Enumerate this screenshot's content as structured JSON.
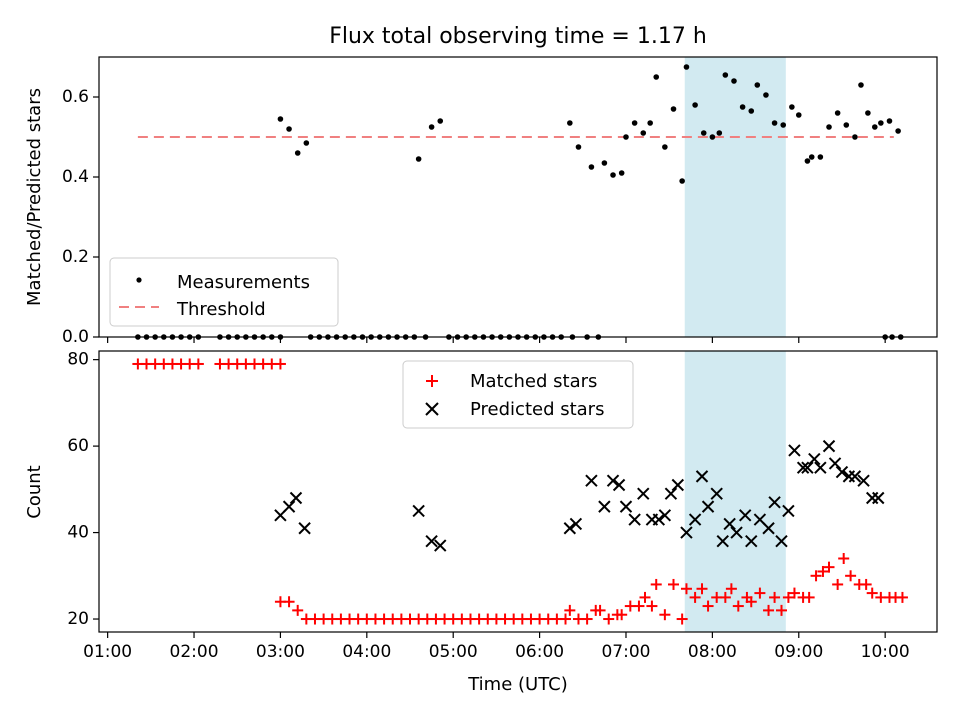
{
  "title": "Flux total observing time = 1.17 h",
  "colors": {
    "matched": "#ff0000",
    "predicted": "#000000",
    "measurement": "#000000",
    "threshold": "#f08080",
    "highlight": "#add8e6"
  },
  "chart_data": [
    {
      "type": "scatter",
      "panel": "top",
      "ylabel": "Matched/Predicted stars",
      "ylim": [
        0,
        0.7
      ],
      "yticks": [
        0.0,
        0.2,
        0.4,
        0.6
      ],
      "ytick_labels": [
        "0.0",
        "0.2",
        "0.4",
        "0.6"
      ],
      "xlim_hours": [
        0.9,
        10.6
      ],
      "highlight_span_hours": [
        7.68,
        8.85
      ],
      "legend": {
        "placement": "lower-left",
        "entries": [
          "Measurements",
          "Threshold"
        ]
      },
      "threshold": {
        "name": "Threshold",
        "value": 0.5,
        "x_range_hours": [
          1.35,
          10.1
        ]
      },
      "series": [
        {
          "name": "Measurements",
          "points": [
            [
              1.35,
              0
            ],
            [
              1.45,
              0
            ],
            [
              1.55,
              0
            ],
            [
              1.65,
              0
            ],
            [
              1.75,
              0
            ],
            [
              1.85,
              0
            ],
            [
              1.95,
              0
            ],
            [
              2.05,
              0
            ],
            [
              2.3,
              0
            ],
            [
              2.4,
              0
            ],
            [
              2.5,
              0
            ],
            [
              2.6,
              0
            ],
            [
              2.7,
              0
            ],
            [
              2.8,
              0
            ],
            [
              2.9,
              0
            ],
            [
              3.0,
              0
            ],
            [
              3.0,
              0.545
            ],
            [
              3.1,
              0.52
            ],
            [
              3.2,
              0.46
            ],
            [
              3.3,
              0.485
            ],
            [
              3.35,
              0
            ],
            [
              3.45,
              0
            ],
            [
              3.55,
              0
            ],
            [
              3.65,
              0
            ],
            [
              3.75,
              0
            ],
            [
              3.85,
              0
            ],
            [
              3.95,
              0
            ],
            [
              4.05,
              0
            ],
            [
              4.15,
              0
            ],
            [
              4.25,
              0
            ],
            [
              4.35,
              0
            ],
            [
              4.45,
              0
            ],
            [
              4.55,
              0
            ],
            [
              4.6,
              0.445
            ],
            [
              4.68,
              0
            ],
            [
              4.75,
              0.525
            ],
            [
              4.85,
              0.54
            ],
            [
              4.95,
              0
            ],
            [
              5.05,
              0
            ],
            [
              5.15,
              0
            ],
            [
              5.25,
              0
            ],
            [
              5.35,
              0
            ],
            [
              5.45,
              0
            ],
            [
              5.55,
              0
            ],
            [
              5.65,
              0
            ],
            [
              5.75,
              0
            ],
            [
              5.85,
              0
            ],
            [
              5.95,
              0
            ],
            [
              6.05,
              0
            ],
            [
              6.15,
              0
            ],
            [
              6.25,
              0
            ],
            [
              6.35,
              0.535
            ],
            [
              6.38,
              0
            ],
            [
              6.45,
              0.475
            ],
            [
              6.55,
              0
            ],
            [
              6.6,
              0.425
            ],
            [
              6.68,
              0
            ],
            [
              6.75,
              0.435
            ],
            [
              6.85,
              0.405
            ],
            [
              6.95,
              0.41
            ],
            [
              7.0,
              0.5
            ],
            [
              7.1,
              0.535
            ],
            [
              7.2,
              0.51
            ],
            [
              7.28,
              0.535
            ],
            [
              7.35,
              0.65
            ],
            [
              7.45,
              0.475
            ],
            [
              7.55,
              0.57
            ],
            [
              7.65,
              0.39
            ],
            [
              7.7,
              0.675
            ],
            [
              7.8,
              0.58
            ],
            [
              7.9,
              0.51
            ],
            [
              8.0,
              0.5
            ],
            [
              8.08,
              0.51
            ],
            [
              8.15,
              0.655
            ],
            [
              8.25,
              0.64
            ],
            [
              8.35,
              0.575
            ],
            [
              8.45,
              0.565
            ],
            [
              8.52,
              0.63
            ],
            [
              8.62,
              0.605
            ],
            [
              8.72,
              0.535
            ],
            [
              8.82,
              0.53
            ],
            [
              8.92,
              0.575
            ],
            [
              9.0,
              0.555
            ],
            [
              9.1,
              0.44
            ],
            [
              9.15,
              0.45
            ],
            [
              9.25,
              0.45
            ],
            [
              9.35,
              0.525
            ],
            [
              9.45,
              0.56
            ],
            [
              9.55,
              0.53
            ],
            [
              9.65,
              0.5
            ],
            [
              9.72,
              0.63
            ],
            [
              9.8,
              0.56
            ],
            [
              9.88,
              0.525
            ],
            [
              9.95,
              0.535
            ],
            [
              10.05,
              0.54
            ],
            [
              10.15,
              0.515
            ],
            [
              10.0,
              0
            ],
            [
              10.08,
              0
            ],
            [
              10.18,
              0
            ]
          ]
        }
      ]
    },
    {
      "type": "scatter",
      "panel": "bottom",
      "xlabel": "Time (UTC)",
      "ylabel": "Count",
      "ylim": [
        17,
        82
      ],
      "yticks": [
        20,
        40,
        60,
        80
      ],
      "ytick_labels": [
        "20",
        "40",
        "60",
        "80"
      ],
      "xlim_hours": [
        0.9,
        10.6
      ],
      "xticks_hours": [
        1,
        2,
        3,
        4,
        5,
        6,
        7,
        8,
        9,
        10
      ],
      "xtick_labels": [
        "01:00",
        "02:00",
        "03:00",
        "04:00",
        "05:00",
        "06:00",
        "07:00",
        "08:00",
        "09:00",
        "10:00"
      ],
      "highlight_span_hours": [
        7.68,
        8.85
      ],
      "legend": {
        "placement": "upper-center",
        "entries": [
          "Matched stars",
          "Predicted stars"
        ]
      },
      "series": [
        {
          "name": "Matched stars",
          "points": [
            [
              1.35,
              79
            ],
            [
              1.45,
              79
            ],
            [
              1.55,
              79
            ],
            [
              1.65,
              79
            ],
            [
              1.75,
              79
            ],
            [
              1.85,
              79
            ],
            [
              1.95,
              79
            ],
            [
              2.05,
              79
            ],
            [
              2.3,
              79
            ],
            [
              2.4,
              79
            ],
            [
              2.5,
              79
            ],
            [
              2.6,
              79
            ],
            [
              2.7,
              79
            ],
            [
              2.8,
              79
            ],
            [
              2.9,
              79
            ],
            [
              3.0,
              79
            ],
            [
              3.0,
              24
            ],
            [
              3.1,
              24
            ],
            [
              3.2,
              22
            ],
            [
              3.3,
              20
            ],
            [
              3.4,
              20
            ],
            [
              3.5,
              20
            ],
            [
              3.6,
              20
            ],
            [
              3.7,
              20
            ],
            [
              3.8,
              20
            ],
            [
              3.9,
              20
            ],
            [
              4.0,
              20
            ],
            [
              4.1,
              20
            ],
            [
              4.2,
              20
            ],
            [
              4.3,
              20
            ],
            [
              4.4,
              20
            ],
            [
              4.5,
              20
            ],
            [
              4.6,
              20
            ],
            [
              4.7,
              20
            ],
            [
              4.8,
              20
            ],
            [
              4.9,
              20
            ],
            [
              5.0,
              20
            ],
            [
              5.1,
              20
            ],
            [
              5.2,
              20
            ],
            [
              5.3,
              20
            ],
            [
              5.4,
              20
            ],
            [
              5.5,
              20
            ],
            [
              5.6,
              20
            ],
            [
              5.7,
              20
            ],
            [
              5.8,
              20
            ],
            [
              5.9,
              20
            ],
            [
              6.0,
              20
            ],
            [
              6.1,
              20
            ],
            [
              6.2,
              20
            ],
            [
              6.3,
              20
            ],
            [
              6.35,
              22
            ],
            [
              6.45,
              20
            ],
            [
              6.55,
              20
            ],
            [
              6.65,
              22
            ],
            [
              6.7,
              22
            ],
            [
              6.8,
              20
            ],
            [
              6.9,
              21
            ],
            [
              6.95,
              21
            ],
            [
              7.05,
              23
            ],
            [
              7.15,
              23
            ],
            [
              7.22,
              25
            ],
            [
              7.3,
              23
            ],
            [
              7.35,
              28
            ],
            [
              7.45,
              21
            ],
            [
              7.55,
              28
            ],
            [
              7.65,
              20
            ],
            [
              7.7,
              27
            ],
            [
              7.8,
              25
            ],
            [
              7.88,
              27
            ],
            [
              7.95,
              23
            ],
            [
              8.05,
              25
            ],
            [
              8.15,
              25
            ],
            [
              8.22,
              27
            ],
            [
              8.3,
              23
            ],
            [
              8.4,
              25
            ],
            [
              8.45,
              24
            ],
            [
              8.55,
              26
            ],
            [
              8.65,
              22
            ],
            [
              8.72,
              25
            ],
            [
              8.8,
              22
            ],
            [
              8.88,
              25
            ],
            [
              8.95,
              26
            ],
            [
              9.05,
              25
            ],
            [
              9.12,
              25
            ],
            [
              9.2,
              30
            ],
            [
              9.28,
              31
            ],
            [
              9.35,
              32
            ],
            [
              9.45,
              28
            ],
            [
              9.52,
              34
            ],
            [
              9.6,
              30
            ],
            [
              9.7,
              28
            ],
            [
              9.78,
              28
            ],
            [
              9.85,
              26
            ],
            [
              9.95,
              25
            ],
            [
              10.05,
              25
            ],
            [
              10.12,
              25
            ],
            [
              10.2,
              25
            ]
          ]
        },
        {
          "name": "Predicted stars",
          "points": [
            [
              3.0,
              44
            ],
            [
              3.1,
              46
            ],
            [
              3.18,
              48
            ],
            [
              3.28,
              41
            ],
            [
              4.6,
              45
            ],
            [
              4.75,
              38
            ],
            [
              4.85,
              37
            ],
            [
              6.35,
              41
            ],
            [
              6.42,
              42
            ],
            [
              6.6,
              52
            ],
            [
              6.75,
              46
            ],
            [
              6.85,
              52
            ],
            [
              6.92,
              51
            ],
            [
              7.0,
              46
            ],
            [
              7.1,
              43
            ],
            [
              7.2,
              49
            ],
            [
              7.3,
              43
            ],
            [
              7.38,
              43
            ],
            [
              7.45,
              44
            ],
            [
              7.52,
              49
            ],
            [
              7.6,
              51
            ],
            [
              7.7,
              40
            ],
            [
              7.8,
              43
            ],
            [
              7.88,
              53
            ],
            [
              7.95,
              46
            ],
            [
              8.05,
              49
            ],
            [
              8.12,
              38
            ],
            [
              8.2,
              42
            ],
            [
              8.28,
              40
            ],
            [
              8.38,
              44
            ],
            [
              8.45,
              38
            ],
            [
              8.55,
              43
            ],
            [
              8.65,
              41
            ],
            [
              8.72,
              47
            ],
            [
              8.8,
              38
            ],
            [
              8.88,
              45
            ],
            [
              8.95,
              59
            ],
            [
              9.05,
              55
            ],
            [
              9.1,
              55
            ],
            [
              9.18,
              57
            ],
            [
              9.25,
              55
            ],
            [
              9.35,
              60
            ],
            [
              9.42,
              56
            ],
            [
              9.5,
              54
            ],
            [
              9.58,
              53
            ],
            [
              9.65,
              53
            ],
            [
              9.75,
              52
            ],
            [
              9.85,
              48
            ],
            [
              9.92,
              48
            ]
          ]
        }
      ]
    }
  ]
}
